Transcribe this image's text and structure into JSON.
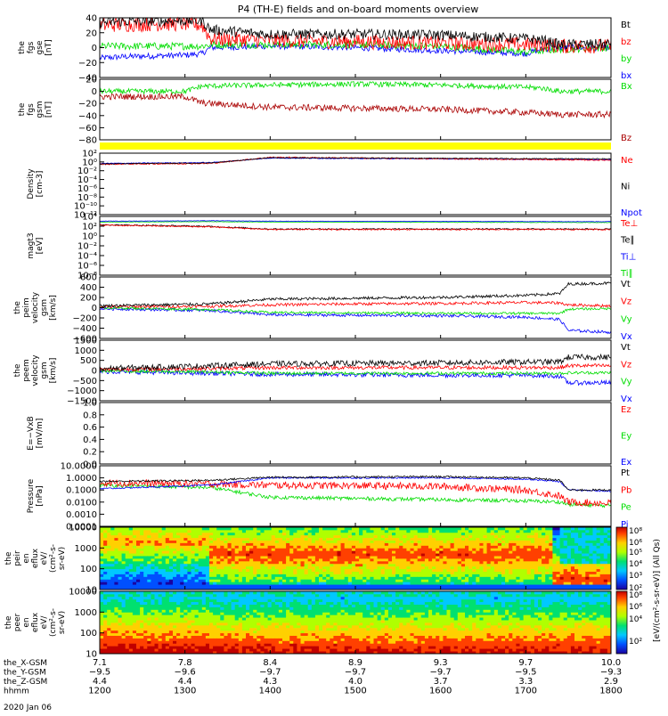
{
  "title": "P4 (TH-E) fields and on-board moments overview",
  "date_label": "2020 Jan 06",
  "colors": {
    "black": "#000000",
    "red": "#ff0000",
    "green": "#00dd00",
    "blue": "#0000ff",
    "darkred": "#aa0000",
    "yellow": "#ffff00",
    "lime": "#00ff00"
  },
  "chart_data": [
    {
      "id": "fgs_gse",
      "type": "line",
      "ylabel": [
        "the",
        "fgs",
        "gse",
        "[nT]"
      ],
      "yticks": [
        "40",
        "20",
        "0",
        "−20",
        "−40"
      ],
      "ylim": [
        -40,
        40
      ],
      "log": false,
      "legend": [
        {
          "name": "Bt",
          "color": "#000000"
        },
        {
          "name": "bz",
          "color": "#ff0000"
        },
        {
          "name": "by",
          "color": "#00dd00"
        },
        {
          "name": "bx",
          "color": "#0000ff"
        }
      ],
      "series": [
        {
          "name": "bx",
          "color": "#0000ff",
          "x": [
            1200,
            1230,
            1300,
            1320,
            1330,
            1400,
            1500,
            1600,
            1700,
            1720,
            1740,
            1800
          ],
          "y": [
            -14,
            -12,
            -10,
            -8,
            0,
            2,
            0,
            -4,
            -8,
            -2,
            0,
            0
          ],
          "noise": 4
        },
        {
          "name": "by",
          "color": "#00dd00",
          "x": [
            1200,
            1230,
            1300,
            1320,
            1330,
            1400,
            1500,
            1600,
            1700,
            1720,
            1740,
            1800
          ],
          "y": [
            2,
            2,
            2,
            2,
            4,
            4,
            4,
            2,
            -6,
            -4,
            -2,
            0
          ],
          "noise": 5
        },
        {
          "name": "bz",
          "color": "#ff0000",
          "x": [
            1200,
            1230,
            1300,
            1320,
            1330,
            1400,
            1500,
            1600,
            1700,
            1720,
            1740,
            1800
          ],
          "y": [
            30,
            31,
            32,
            30,
            12,
            10,
            8,
            6,
            4,
            4,
            2,
            2
          ],
          "noise": 10
        },
        {
          "name": "Bt",
          "color": "#000000",
          "x": [
            1200,
            1230,
            1300,
            1320,
            1330,
            1400,
            1500,
            1600,
            1700,
            1720,
            1740,
            1800
          ],
          "y": [
            34,
            35,
            36,
            36,
            24,
            18,
            18,
            17,
            12,
            10,
            4,
            5
          ],
          "noise": 7
        }
      ]
    },
    {
      "id": "fgs_gsm",
      "type": "line",
      "ylabel": [
        "the",
        "fgs",
        "gsm",
        "[nT]"
      ],
      "yticks": [
        "20",
        "0",
        "−20",
        "−40",
        "−60",
        "−80"
      ],
      "ylim": [
        -90,
        25
      ],
      "log": false,
      "legend": [
        {
          "name": "Bx",
          "color": "#00dd00"
        },
        {
          "name": "Bz",
          "color": "#aa0000"
        }
      ],
      "series": [
        {
          "name": "Bx",
          "color": "#00dd00",
          "x": [
            1200,
            1300,
            1320,
            1400,
            1500,
            1600,
            1700,
            1720,
            1740,
            1800
          ],
          "y": [
            2,
            2,
            12,
            14,
            16,
            14,
            10,
            8,
            2,
            2
          ],
          "noise": 5
        },
        {
          "name": "Bz",
          "color": "#aa0000",
          "x": [
            1200,
            1300,
            1320,
            1400,
            1500,
            1600,
            1700,
            1720,
            1740,
            1800
          ],
          "y": [
            -8,
            -8,
            -20,
            -28,
            -30,
            -32,
            -38,
            -40,
            -42,
            -42
          ],
          "noise": 6
        }
      ]
    },
    {
      "id": "density",
      "type": "line",
      "ylabel": [
        "Density",
        "[cm-3]"
      ],
      "yticks": [
        "10²",
        "10⁰",
        "10⁻²",
        "10⁻⁴",
        "10⁻⁶",
        "10⁻⁸",
        "10⁻¹⁰",
        "10⁻¹²"
      ],
      "ylim": [
        -13,
        2
      ],
      "log": true,
      "legend": [
        {
          "name": "Ne",
          "color": "#ff0000"
        },
        {
          "name": "Ni",
          "color": "#000000"
        },
        {
          "name": "Npot",
          "color": "#0000ff"
        }
      ],
      "series": [
        {
          "name": "Npot",
          "color": "#0000ff",
          "x": [
            1200,
            1330,
            1400,
            1800
          ],
          "y": [
            -0.5,
            -0.3,
            0.8,
            0.4
          ],
          "noise": 0.1
        },
        {
          "name": "Ne",
          "color": "#ff0000",
          "x": [
            1200,
            1330,
            1400,
            1800
          ],
          "y": [
            -0.7,
            -0.5,
            1.0,
            0.3
          ],
          "noise": 0.15
        },
        {
          "name": "Ni",
          "color": "#000000",
          "x": [
            1200,
            1330,
            1400,
            1800
          ],
          "y": [
            -0.6,
            -0.4,
            0.9,
            0.6
          ],
          "noise": 0.1
        }
      ]
    },
    {
      "id": "temperature",
      "type": "line",
      "ylabel": [
        "magt3",
        "[eV]"
      ],
      "yticks": [
        "10⁴",
        "10²",
        "10⁰",
        "10⁻²",
        "10⁻⁴",
        "10⁻⁶",
        "10⁻⁸"
      ],
      "ylim": [
        -9,
        4.5
      ],
      "log": true,
      "legend": [
        {
          "name": "Te⊥",
          "color": "#ff0000"
        },
        {
          "name": "Te∥",
          "color": "#000000"
        },
        {
          "name": "Ti⊥",
          "color": "#0000ff"
        },
        {
          "name": "Ti∥",
          "color": "#00dd00"
        }
      ],
      "series": [
        {
          "name": "Ti∥",
          "color": "#00dd00",
          "x": [
            1200,
            1330,
            1400,
            1800
          ],
          "y": [
            3.2,
            3.3,
            3.2,
            3.1
          ],
          "noise": 0.05
        },
        {
          "name": "Ti⊥",
          "color": "#0000ff",
          "x": [
            1200,
            1330,
            1400,
            1800
          ],
          "y": [
            3.4,
            3.5,
            3.4,
            3.3
          ],
          "noise": 0.05
        },
        {
          "name": "Te∥",
          "color": "#000000",
          "x": [
            1200,
            1330,
            1400,
            1800
          ],
          "y": [
            2.6,
            2.2,
            1.6,
            1.6
          ],
          "noise": 0.15
        },
        {
          "name": "Te⊥",
          "color": "#ff0000",
          "x": [
            1200,
            1330,
            1400,
            1800
          ],
          "y": [
            2.5,
            2.1,
            1.5,
            1.5
          ],
          "noise": 0.15
        }
      ]
    },
    {
      "id": "peim_velocity",
      "type": "line",
      "ylabel": [
        "the",
        "peim",
        "velocity",
        "gsm",
        "[km/s]"
      ],
      "yticks": [
        "600",
        "400",
        "200",
        "0",
        "−200",
        "−400",
        "−600"
      ],
      "ylim": [
        -650,
        650
      ],
      "log": false,
      "legend": [
        {
          "name": "Vt",
          "color": "#000000"
        },
        {
          "name": "Vz",
          "color": "#ff0000"
        },
        {
          "name": "Vy",
          "color": "#00dd00"
        },
        {
          "name": "Vx",
          "color": "#0000ff"
        }
      ],
      "series": [
        {
          "name": "Vx",
          "color": "#0000ff",
          "x": [
            1200,
            1330,
            1400,
            1500,
            1600,
            1700,
            1740,
            1750,
            1800
          ],
          "y": [
            -20,
            -60,
            -150,
            -160,
            -170,
            -200,
            -250,
            -480,
            -520
          ],
          "noise": 30
        },
        {
          "name": "Vy",
          "color": "#00dd00",
          "x": [
            1200,
            1330,
            1400,
            1500,
            1600,
            1700,
            1740,
            1750,
            1800
          ],
          "y": [
            0,
            -40,
            -100,
            -110,
            -120,
            -120,
            -120,
            -30,
            -20
          ],
          "noise": 25
        },
        {
          "name": "Vz",
          "color": "#ff0000",
          "x": [
            1200,
            1330,
            1400,
            1500,
            1600,
            1700,
            1740,
            1750,
            1800
          ],
          "y": [
            20,
            30,
            60,
            80,
            90,
            110,
            100,
            60,
            40
          ],
          "noise": 30
        },
        {
          "name": "Vt",
          "color": "#000000",
          "x": [
            1200,
            1330,
            1400,
            1500,
            1600,
            1700,
            1740,
            1750,
            1800
          ],
          "y": [
            40,
            80,
            180,
            200,
            220,
            260,
            300,
            500,
            520
          ],
          "noise": 30
        }
      ]
    },
    {
      "id": "peem_velocity",
      "type": "line",
      "ylabel": [
        "the",
        "peem",
        "velocity",
        "gsm",
        "[km/s]"
      ],
      "yticks": [
        "1500",
        "1000",
        "500",
        "0",
        "−500",
        "−1000",
        "−1500"
      ],
      "ylim": [
        -1600,
        1600
      ],
      "log": false,
      "legend": [
        {
          "name": "Vt",
          "color": "#000000"
        },
        {
          "name": "Vz",
          "color": "#ff0000"
        },
        {
          "name": "Vy",
          "color": "#00dd00"
        },
        {
          "name": "Vx",
          "color": "#0000ff"
        }
      ],
      "series": [
        {
          "name": "Vx",
          "color": "#0000ff",
          "x": [
            1200,
            1330,
            1400,
            1600,
            1700,
            1740,
            1750,
            1800
          ],
          "y": [
            -50,
            -150,
            -200,
            -250,
            -250,
            -300,
            -650,
            -650
          ],
          "noise": 120
        },
        {
          "name": "Vy",
          "color": "#00dd00",
          "x": [
            1200,
            1330,
            1400,
            1600,
            1700,
            1740,
            1750,
            1800
          ],
          "y": [
            -20,
            -80,
            -150,
            -150,
            -150,
            -150,
            -120,
            -120
          ],
          "noise": 80
        },
        {
          "name": "Vz",
          "color": "#ff0000",
          "x": [
            1200,
            1330,
            1400,
            1600,
            1700,
            1740,
            1750,
            1800
          ],
          "y": [
            50,
            100,
            150,
            150,
            150,
            150,
            250,
            250
          ],
          "noise": 100
        },
        {
          "name": "Vt",
          "color": "#000000",
          "x": [
            1200,
            1330,
            1400,
            1600,
            1700,
            1740,
            1750,
            1800
          ],
          "y": [
            100,
            250,
            350,
            400,
            450,
            450,
            700,
            700
          ],
          "noise": 150
        }
      ]
    },
    {
      "id": "efield",
      "type": "line",
      "ylabel": [
        "E=−VxB",
        "[mV/m]"
      ],
      "yticks": [
        "1.0",
        "0.8",
        "0.6",
        "0.4",
        "0.2",
        "0.0"
      ],
      "ylim": [
        0,
        1.0
      ],
      "log": false,
      "legend": [
        {
          "name": "Ez",
          "color": "#ff0000"
        },
        {
          "name": "Ey",
          "color": "#00dd00"
        },
        {
          "name": "Ex",
          "color": "#0000ff"
        }
      ],
      "series": []
    },
    {
      "id": "pressure",
      "type": "line",
      "ylabel": [
        "Pressure",
        "[nPa]"
      ],
      "yticks": [
        "10.0000",
        "1.0000",
        "0.1000",
        "0.0100",
        "0.0010",
        "0.0001"
      ],
      "ylim": [
        -4,
        1
      ],
      "log": true,
      "legend": [
        {
          "name": "Pt",
          "color": "#000000"
        },
        {
          "name": "Pb",
          "color": "#ff0000"
        },
        {
          "name": "Pe",
          "color": "#00dd00"
        },
        {
          "name": "Pi",
          "color": "#0000ff"
        }
      ],
      "series": [
        {
          "name": "Pe",
          "color": "#00dd00",
          "x": [
            1200,
            1330,
            1400,
            1600,
            1700,
            1740,
            1750,
            1800
          ],
          "y": [
            -0.6,
            -0.8,
            -1.6,
            -1.8,
            -1.9,
            -2.0,
            -2.2,
            -2.3
          ],
          "noise": 0.15
        },
        {
          "name": "Pb",
          "color": "#ff0000",
          "x": [
            1200,
            1330,
            1400,
            1600,
            1700,
            1740,
            1750,
            1800
          ],
          "y": [
            -0.4,
            -0.5,
            -0.6,
            -0.7,
            -1.0,
            -1.5,
            -2.0,
            -2.1
          ],
          "noise": 0.3
        },
        {
          "name": "Pi",
          "color": "#0000ff",
          "x": [
            1200,
            1330,
            1400,
            1600,
            1700,
            1740,
            1750,
            1800
          ],
          "y": [
            -0.9,
            -0.6,
            0.0,
            0.0,
            -0.1,
            -0.3,
            -1.0,
            -1.1
          ],
          "noise": 0.06
        },
        {
          "name": "Pt",
          "color": "#000000",
          "x": [
            1200,
            1330,
            1400,
            1600,
            1700,
            1740,
            1750,
            1800
          ],
          "y": [
            -0.3,
            -0.2,
            0.05,
            0.1,
            0.0,
            -0.2,
            -1.0,
            -1.0
          ],
          "noise": 0.08
        }
      ]
    },
    {
      "id": "peir_eflux",
      "type": "heatmap",
      "ylabel": [
        "the",
        "peir",
        "en",
        "eflux",
        "eV/",
        "(cm²-s-",
        "sr-eV)"
      ],
      "yticks": [
        "10000",
        "1000",
        "100",
        "10"
      ],
      "ylim": [
        1,
        4.4
      ],
      "log": true
    },
    {
      "id": "peer_eflux",
      "type": "heatmap",
      "ylabel": [
        "the",
        "peer",
        "en",
        "eflux",
        "eV/",
        "(cm²-s-",
        "sr-eV)"
      ],
      "yticks": [
        "10000",
        "1000",
        "100",
        "10"
      ],
      "ylim": [
        1,
        4.4
      ],
      "log": true
    }
  ],
  "colorbar": {
    "label": "[eV/(cm²-s-sr-eV)] (All Qs)",
    "ticks": [
      "10⁸",
      "10⁶",
      "10⁵",
      "10⁴",
      "10³",
      "10²",
      "10⁸",
      "10⁶",
      "10⁴",
      "10²"
    ]
  },
  "xaxis": {
    "rows": [
      {
        "label": "the_X-GSM",
        "values": [
          "7.1",
          "7.8",
          "8.4",
          "8.9",
          "9.3",
          "9.7",
          "10.0"
        ]
      },
      {
        "label": "the_Y-GSM",
        "values": [
          "−9.5",
          "−9.6",
          "−9.7",
          "−9.7",
          "−9.7",
          "−9.5",
          "−9.3"
        ]
      },
      {
        "label": "the_Z-GSM",
        "values": [
          "4.4",
          "4.4",
          "4.3",
          "4.0",
          "3.7",
          "3.3",
          "2.9"
        ]
      },
      {
        "label": "hhmm",
        "values": [
          "1200",
          "1300",
          "1400",
          "1500",
          "1600",
          "1700",
          "1800"
        ]
      }
    ]
  }
}
